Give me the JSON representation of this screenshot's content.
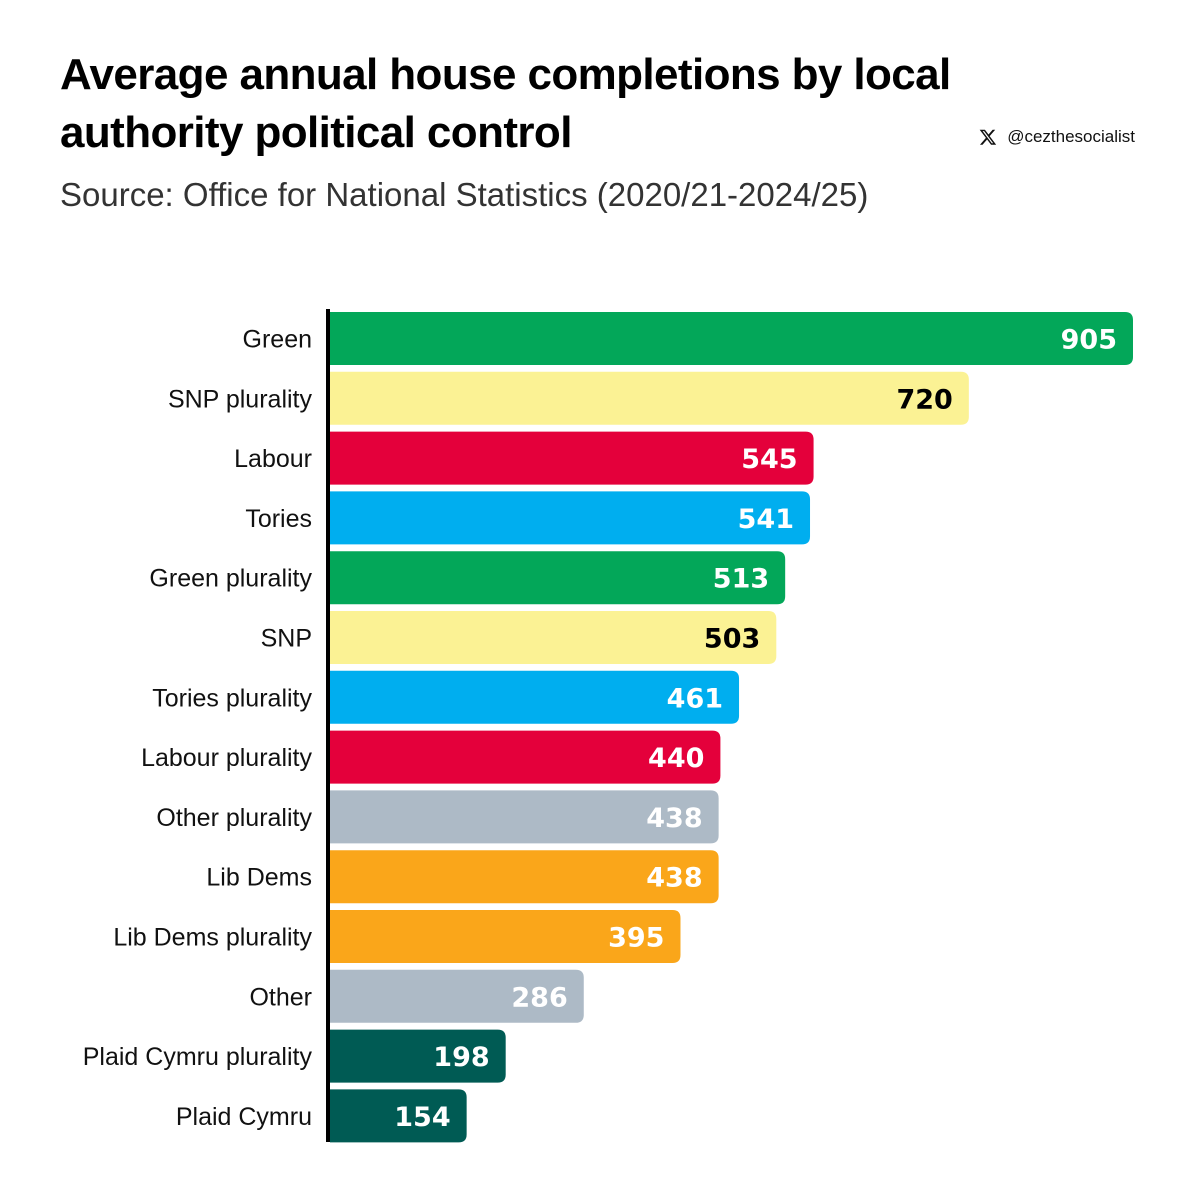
{
  "header": {
    "title": "Average annual house completions by local authority political control",
    "subtitle": "Source: Office for National Statistics (2020/21-2024/25)",
    "handle": "@cezthesocialist",
    "handle_icon": "x-logo-icon"
  },
  "chart_data": {
    "type": "bar",
    "orientation": "horizontal",
    "title": "Average annual house completions by local authority political control",
    "subtitle": "Source: Office for National Statistics (2020/21-2024/25)",
    "xlabel": "",
    "ylabel": "",
    "xlim": [
      0,
      905
    ],
    "grid": false,
    "categories": [
      "Green",
      "SNP plurality",
      "Labour",
      "Tories",
      "Green plurality",
      "SNP",
      "Tories plurality",
      "Labour plurality",
      "Other plurality",
      "Lib Dems",
      "Lib Dems plurality",
      "Other",
      "Plaid Cymru plurality",
      "Plaid Cymru"
    ],
    "values": [
      905,
      720,
      545,
      541,
      513,
      503,
      461,
      440,
      438,
      438,
      395,
      286,
      198,
      154
    ],
    "colors": [
      "#03a759",
      "#fbf294",
      "#e4003b",
      "#00aeef",
      "#03a759",
      "#fbf294",
      "#00aeef",
      "#e4003b",
      "#adbac6",
      "#faa61a",
      "#faa61a",
      "#adbac6",
      "#005b54",
      "#005b54"
    ],
    "label_colors": [
      "#ffffff",
      "#000000",
      "#ffffff",
      "#ffffff",
      "#ffffff",
      "#000000",
      "#ffffff",
      "#ffffff",
      "#ffffff",
      "#ffffff",
      "#ffffff",
      "#ffffff",
      "#ffffff",
      "#ffffff"
    ]
  }
}
